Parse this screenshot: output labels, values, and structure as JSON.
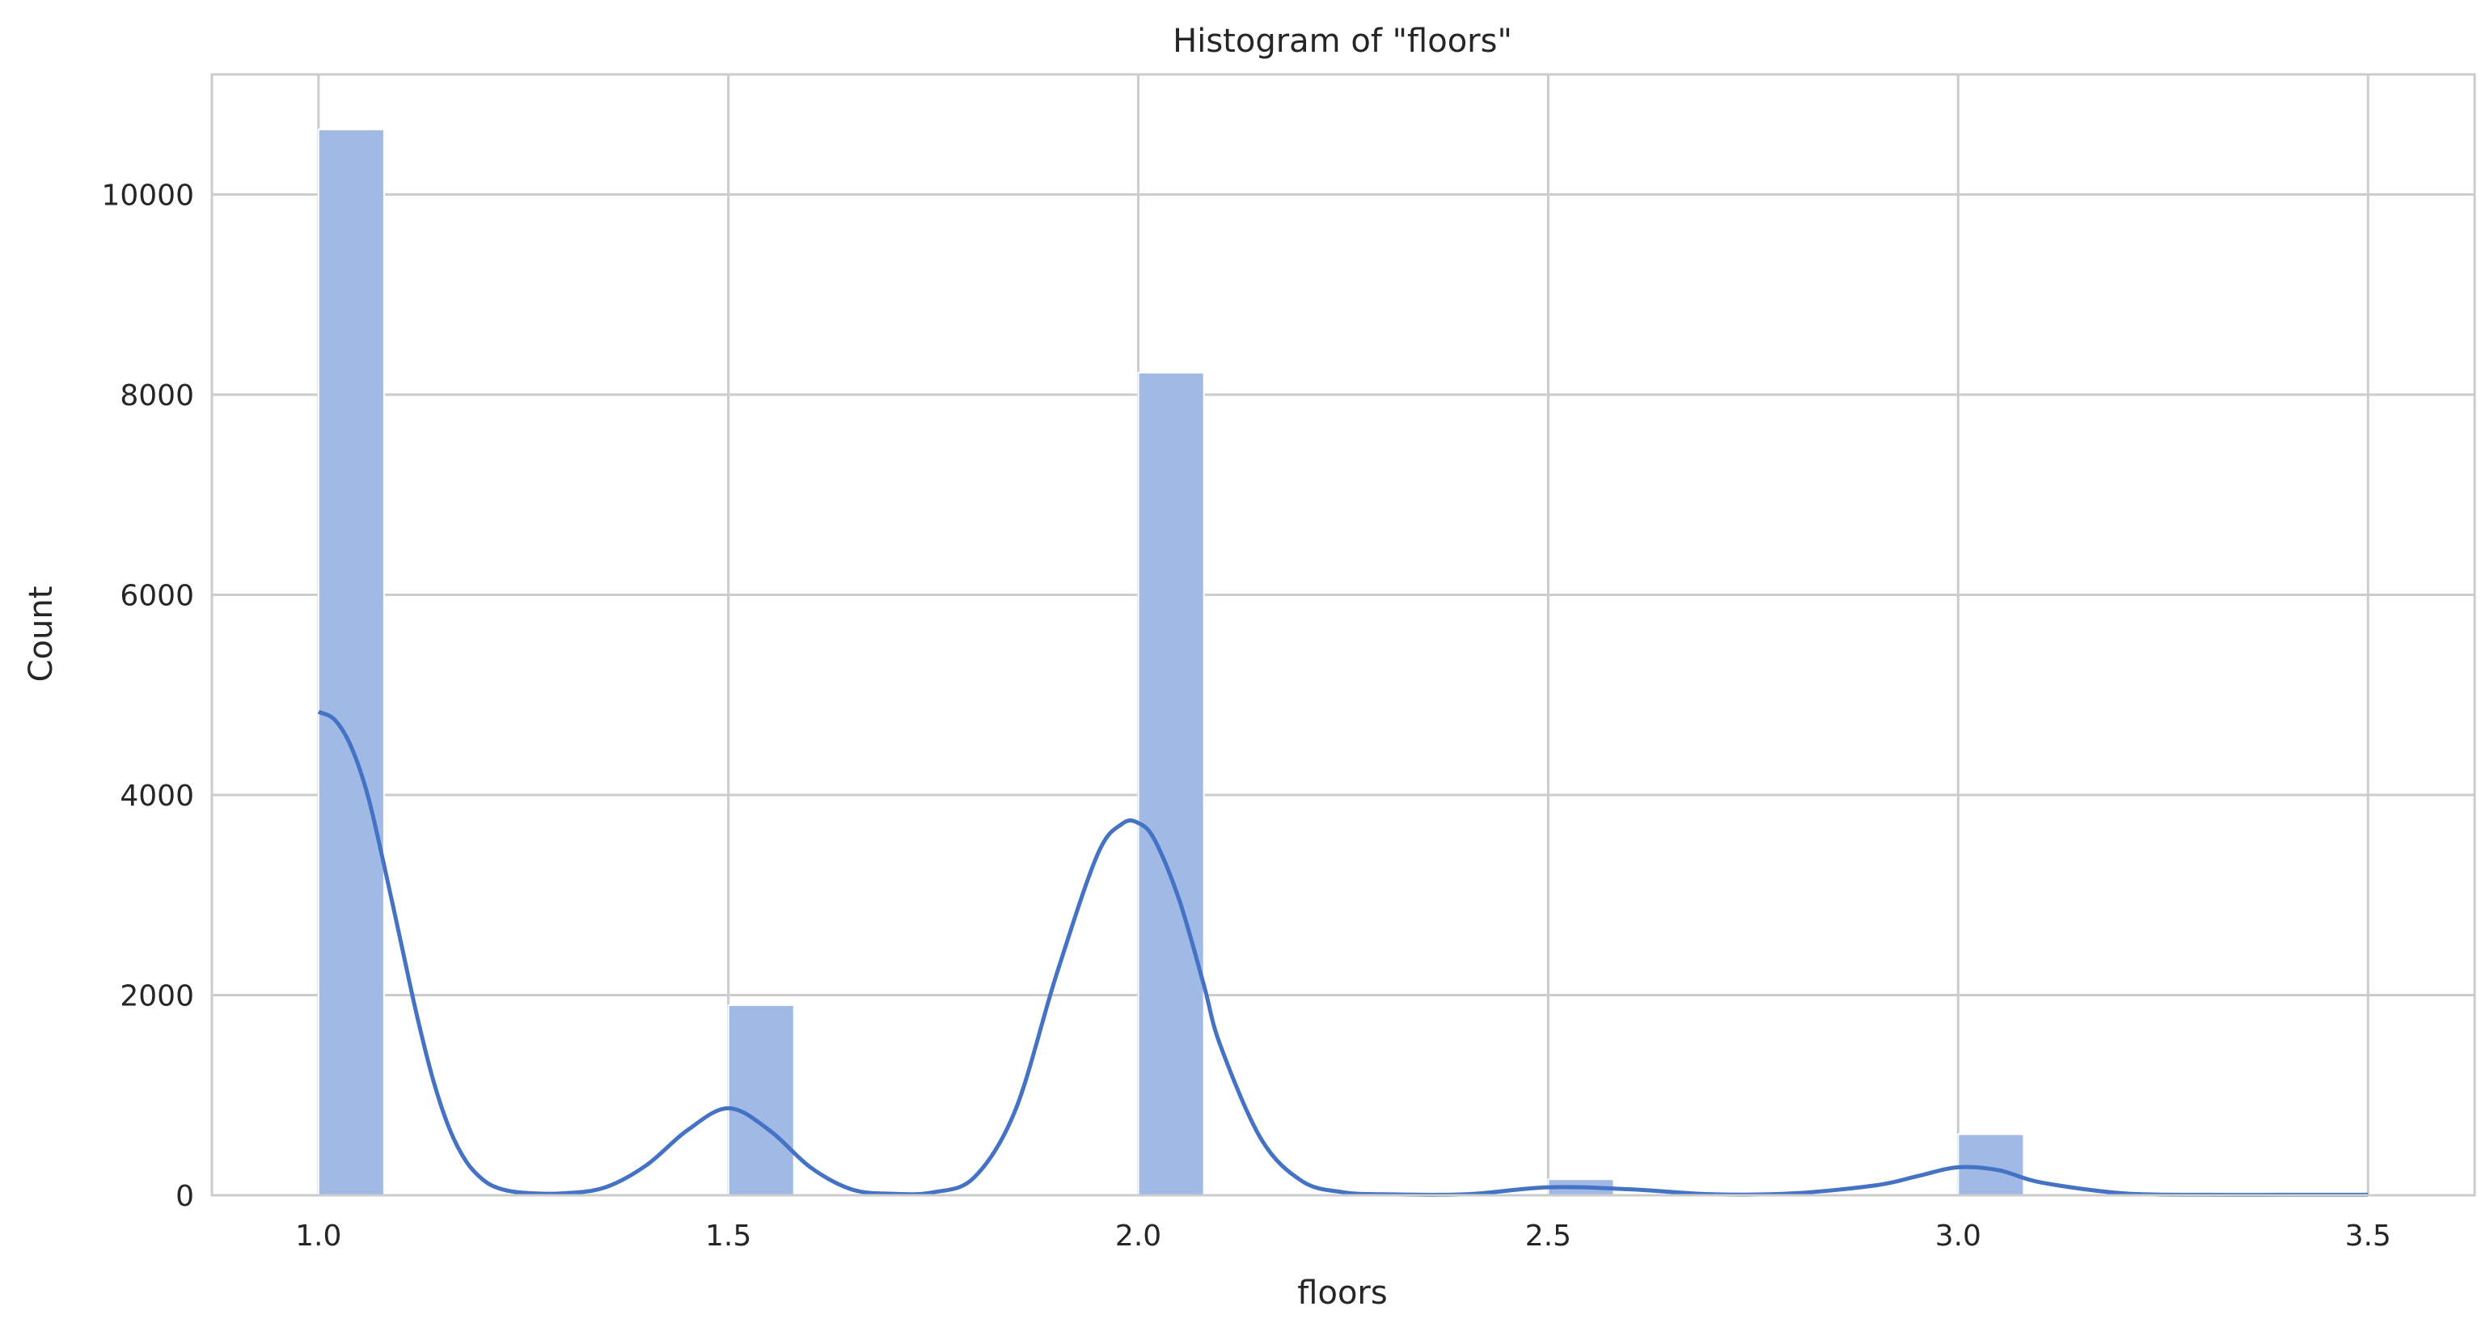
{
  "chart_data": {
    "type": "bar",
    "title": "Histogram of \"floors\"",
    "xlabel": "floors",
    "ylabel": "Count",
    "xlim": [
      0.87,
      3.63
    ],
    "ylim": [
      0,
      11200
    ],
    "xticks": [
      "1.0",
      "1.5",
      "2.0",
      "2.5",
      "3.0",
      "3.5"
    ],
    "yticks": [
      "0",
      "2000",
      "4000",
      "6000",
      "8000",
      "10000"
    ],
    "grid": true,
    "bins": [
      {
        "x0": 1.0,
        "x1": 1.08,
        "count": 10650
      },
      {
        "x0": 1.5,
        "x1": 1.58,
        "count": 1900
      },
      {
        "x0": 2.0,
        "x1": 2.08,
        "count": 8220
      },
      {
        "x0": 2.5,
        "x1": 2.58,
        "count": 160
      },
      {
        "x0": 3.0,
        "x1": 3.08,
        "count": 610
      }
    ],
    "kde": {
      "x": [
        1.0,
        1.02,
        1.04,
        1.06,
        1.08,
        1.1,
        1.12,
        1.14,
        1.16,
        1.18,
        1.2,
        1.22,
        1.25,
        1.3,
        1.35,
        1.4,
        1.45,
        1.5,
        1.55,
        1.6,
        1.65,
        1.7,
        1.75,
        1.8,
        1.85,
        1.9,
        1.95,
        1.98,
        2.0,
        2.02,
        2.05,
        2.08,
        2.1,
        2.15,
        2.2,
        2.25,
        2.3,
        2.4,
        2.5,
        2.6,
        2.7,
        2.8,
        2.9,
        2.95,
        3.0,
        3.05,
        3.1,
        3.2,
        3.3,
        3.4,
        3.5
      ],
      "y": [
        4830,
        4750,
        4480,
        4000,
        3300,
        2550,
        1800,
        1150,
        660,
        340,
        160,
        70,
        25,
        20,
        80,
        300,
        650,
        870,
        650,
        280,
        60,
        15,
        30,
        180,
        850,
        2200,
        3400,
        3710,
        3720,
        3550,
        2950,
        2100,
        1500,
        560,
        140,
        30,
        10,
        10,
        80,
        60,
        10,
        20,
        100,
        190,
        280,
        250,
        130,
        20,
        5,
        5,
        5
      ]
    },
    "colors": {
      "bar": "#a0b9e5",
      "line": "#4472c4",
      "grid": "#cccccc",
      "spine": "#cccccc"
    }
  }
}
